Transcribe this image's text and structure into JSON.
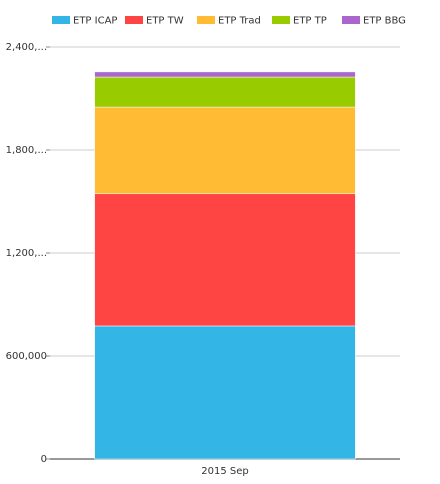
{
  "chart_data": {
    "type": "stacked-bar",
    "categories": [
      "2015 Sep"
    ],
    "series": [
      {
        "name": "ETP ICAP",
        "color": "#33b5e5",
        "values": [
          775000
        ]
      },
      {
        "name": "ETP TW",
        "color": "#ff4444",
        "values": [
          770000
        ]
      },
      {
        "name": "ETP Trad",
        "color": "#ffbb33",
        "values": [
          505000
        ]
      },
      {
        "name": "ETP TP",
        "color": "#99cc00",
        "values": [
          175000
        ]
      },
      {
        "name": "ETP BBG",
        "color": "#aa66cc",
        "values": [
          30000
        ]
      }
    ],
    "ylim": [
      0,
      2400000
    ],
    "yticks": [
      0,
      {
        "value": 600000,
        "label": "600,000"
      },
      {
        "value": 1200000,
        "label": "1,200,..."
      },
      {
        "value": 1800000,
        "label": "1,800,..."
      },
      {
        "value": 2400000,
        "label": "2,400,..."
      }
    ],
    "grid": true,
    "legend": "top"
  }
}
